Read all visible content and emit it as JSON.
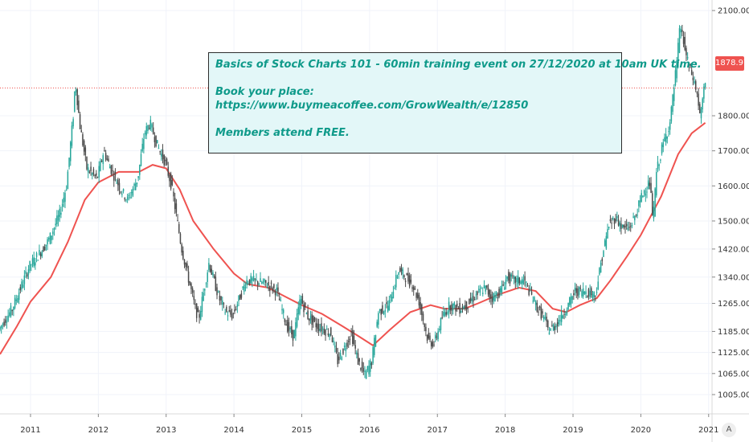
{
  "chart_data": {
    "type": "candlestick",
    "title": "",
    "xlabel": "",
    "ylabel": "",
    "ylim": [
      950,
      2130
    ],
    "y_ticks": [
      "1005.00",
      "1065.00",
      "1125.00",
      "1185.00",
      "1265.00",
      "1340.00",
      "1420.00",
      "1500.00",
      "1600.00",
      "1700.00",
      "1800.00",
      "2100.00"
    ],
    "y_tick_values": [
      1005,
      1065,
      1125,
      1185,
      1265,
      1340,
      1420,
      1500,
      1600,
      1700,
      1800,
      2100
    ],
    "x_ticks": [
      "2011",
      "2012",
      "2013",
      "2014",
      "2015",
      "2016",
      "2017",
      "2018",
      "2019",
      "2020",
      "2021"
    ],
    "x_tick_values": [
      2011,
      2012,
      2013,
      2014,
      2015,
      2016,
      2017,
      2018,
      2019,
      2020,
      2021
    ],
    "xlim": [
      2010.55,
      2021.05
    ],
    "grid": true,
    "last_price": 1878.97,
    "last_price_label": "1878.97",
    "price_path": [
      [
        2010.55,
        1190
      ],
      [
        2010.75,
        1250
      ],
      [
        2011.0,
        1370
      ],
      [
        2011.2,
        1420
      ],
      [
        2011.3,
        1450
      ],
      [
        2011.45,
        1520
      ],
      [
        2011.55,
        1600
      ],
      [
        2011.65,
        1800
      ],
      [
        2011.68,
        1900
      ],
      [
        2011.75,
        1770
      ],
      [
        2011.85,
        1650
      ],
      [
        2012.0,
        1620
      ],
      [
        2012.1,
        1700
      ],
      [
        2012.2,
        1650
      ],
      [
        2012.35,
        1590
      ],
      [
        2012.45,
        1560
      ],
      [
        2012.6,
        1620
      ],
      [
        2012.7,
        1750
      ],
      [
        2012.78,
        1780
      ],
      [
        2012.9,
        1710
      ],
      [
        2013.0,
        1670
      ],
      [
        2013.1,
        1600
      ],
      [
        2013.25,
        1420
      ],
      [
        2013.45,
        1250
      ],
      [
        2013.5,
        1220
      ],
      [
        2013.65,
        1380
      ],
      [
        2013.8,
        1280
      ],
      [
        2013.9,
        1240
      ],
      [
        2014.0,
        1230
      ],
      [
        2014.2,
        1330
      ],
      [
        2014.3,
        1330
      ],
      [
        2014.5,
        1320
      ],
      [
        2014.65,
        1300
      ],
      [
        2014.8,
        1200
      ],
      [
        2014.9,
        1170
      ],
      [
        2015.0,
        1280
      ],
      [
        2015.1,
        1230
      ],
      [
        2015.25,
        1200
      ],
      [
        2015.45,
        1180
      ],
      [
        2015.55,
        1100
      ],
      [
        2015.75,
        1180
      ],
      [
        2015.85,
        1100
      ],
      [
        2015.95,
        1060
      ],
      [
        2016.05,
        1100
      ],
      [
        2016.15,
        1240
      ],
      [
        2016.3,
        1260
      ],
      [
        2016.45,
        1360
      ],
      [
        2016.55,
        1340
      ],
      [
        2016.65,
        1320
      ],
      [
        2016.75,
        1270
      ],
      [
        2016.88,
        1160
      ],
      [
        2016.97,
        1150
      ],
      [
        2017.1,
        1230
      ],
      [
        2017.2,
        1260
      ],
      [
        2017.35,
        1250
      ],
      [
        2017.45,
        1260
      ],
      [
        2017.6,
        1290
      ],
      [
        2017.72,
        1310
      ],
      [
        2017.82,
        1280
      ],
      [
        2017.95,
        1300
      ],
      [
        2018.05,
        1340
      ],
      [
        2018.15,
        1330
      ],
      [
        2018.3,
        1330
      ],
      [
        2018.4,
        1290
      ],
      [
        2018.5,
        1250
      ],
      [
        2018.6,
        1220
      ],
      [
        2018.65,
        1190
      ],
      [
        2018.75,
        1200
      ],
      [
        2018.85,
        1230
      ],
      [
        2018.95,
        1260
      ],
      [
        2019.05,
        1300
      ],
      [
        2019.2,
        1300
      ],
      [
        2019.35,
        1290
      ],
      [
        2019.45,
        1400
      ],
      [
        2019.55,
        1490
      ],
      [
        2019.65,
        1510
      ],
      [
        2019.75,
        1480
      ],
      [
        2019.85,
        1480
      ],
      [
        2019.95,
        1520
      ],
      [
        2020.05,
        1580
      ],
      [
        2020.15,
        1610
      ],
      [
        2020.2,
        1500
      ],
      [
        2020.25,
        1640
      ],
      [
        2020.35,
        1720
      ],
      [
        2020.45,
        1780
      ],
      [
        2020.55,
        1950
      ],
      [
        2020.6,
        2060
      ],
      [
        2020.7,
        1960
      ],
      [
        2020.8,
        1900
      ],
      [
        2020.85,
        1860
      ],
      [
        2020.9,
        1790
      ],
      [
        2020.95,
        1878.97
      ]
    ],
    "candle_step": 0.02,
    "moving_average_path": [
      [
        2010.55,
        1120
      ],
      [
        2010.8,
        1200
      ],
      [
        2011.0,
        1270
      ],
      [
        2011.3,
        1340
      ],
      [
        2011.55,
        1440
      ],
      [
        2011.8,
        1560
      ],
      [
        2012.0,
        1610
      ],
      [
        2012.3,
        1640
      ],
      [
        2012.6,
        1640
      ],
      [
        2012.8,
        1660
      ],
      [
        2013.0,
        1650
      ],
      [
        2013.2,
        1590
      ],
      [
        2013.4,
        1500
      ],
      [
        2013.7,
        1420
      ],
      [
        2014.0,
        1350
      ],
      [
        2014.2,
        1320
      ],
      [
        2014.5,
        1310
      ],
      [
        2014.8,
        1280
      ],
      [
        2015.0,
        1260
      ],
      [
        2015.3,
        1235
      ],
      [
        2015.6,
        1200
      ],
      [
        2015.85,
        1170
      ],
      [
        2016.05,
        1145
      ],
      [
        2016.3,
        1190
      ],
      [
        2016.6,
        1240
      ],
      [
        2016.9,
        1260
      ],
      [
        2017.1,
        1250
      ],
      [
        2017.4,
        1250
      ],
      [
        2017.6,
        1265
      ],
      [
        2017.9,
        1290
      ],
      [
        2018.2,
        1310
      ],
      [
        2018.45,
        1300
      ],
      [
        2018.7,
        1250
      ],
      [
        2018.9,
        1240
      ],
      [
        2019.1,
        1260
      ],
      [
        2019.35,
        1280
      ],
      [
        2019.55,
        1330
      ],
      [
        2019.8,
        1400
      ],
      [
        2020.0,
        1460
      ],
      [
        2020.3,
        1570
      ],
      [
        2020.55,
        1690
      ],
      [
        2020.75,
        1750
      ],
      [
        2020.95,
        1780
      ]
    ]
  },
  "annotation": {
    "line1": "Basics of Stock Charts 101 - 60min training event on 27/12/2020 at 10am UK time.",
    "line2": "Book your place:",
    "line3": "https://www.buymeacoffee.com/GrowWealth/e/12850",
    "line4": "Members attend FREE."
  },
  "scale_button_label": "A",
  "colors": {
    "up": "#26a69a",
    "down": "#4a4a4a",
    "moving_average": "#ef5350",
    "price_line": "#ef5350",
    "annotation_text": "#0f9a8a",
    "annotation_bg": "#e3f7f8"
  }
}
